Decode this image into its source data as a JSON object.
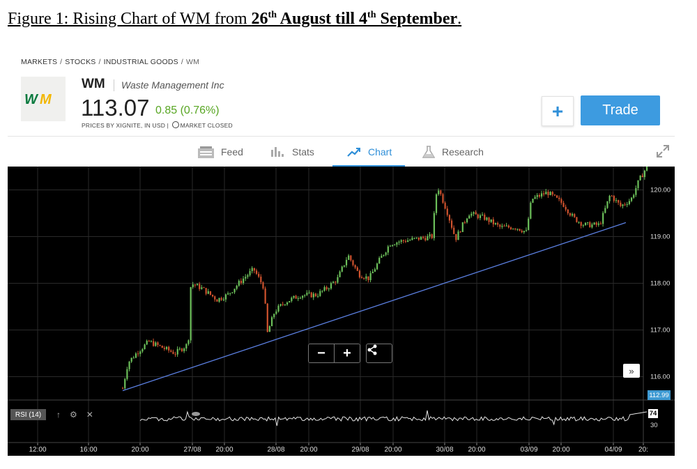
{
  "caption": {
    "prefix": "Figure 1: Rising Chart of WM from ",
    "day1": "26",
    "sup1": "th",
    "month1": " August till 4",
    "sup2": "th",
    "month2": " September",
    "suffix": "."
  },
  "breadcrumb": [
    "MARKETS",
    "STOCKS",
    "INDUSTRIAL GOODS",
    "WM"
  ],
  "header": {
    "logo_text": "WM",
    "ticker": "WM",
    "company": "Waste Management Inc",
    "price": "113.07",
    "change": "0.85 (0.76%)",
    "prices_by": "PRICES BY XIGNITE, IN USD",
    "market_status": "MARKET CLOSED",
    "add_label": "+",
    "trade_label": "Trade"
  },
  "tabs": [
    {
      "label": "Feed",
      "icon": "feed-icon"
    },
    {
      "label": "Stats",
      "icon": "stats-icon"
    },
    {
      "label": "Chart",
      "icon": "chart-icon",
      "active": true
    },
    {
      "label": "Research",
      "icon": "research-icon"
    }
  ],
  "chart_controls": {
    "zoom_out": "−",
    "zoom_in": "+",
    "forward": "»",
    "rsi_label": "RSI (14)",
    "current_price_badge": "112.99",
    "rsi_value_badge": "74"
  },
  "colors": {
    "accent": "#3d9be0",
    "positive": "#58a623",
    "candle_up": "#6cbf5a",
    "candle_down": "#d0532e",
    "trendline": "#5b7fe0"
  },
  "chart_data": {
    "type": "candlestick",
    "ylim": [
      115.5,
      120.5
    ],
    "y_ticks": [
      116.0,
      117.0,
      118.0,
      119.0,
      120.0
    ],
    "x_tick_labels": [
      "12:00",
      "16:00",
      "20:00",
      "27/08",
      "20:00",
      "28/08",
      "20:00",
      "29/08",
      "20:00",
      "30/08",
      "20:00",
      "03/09",
      "20:00",
      "04/09",
      "20:"
    ],
    "price_path": [
      [
        0.0,
        115.75
      ],
      [
        0.01,
        116.3
      ],
      [
        0.03,
        116.55
      ],
      [
        0.05,
        116.75
      ],
      [
        0.08,
        116.6
      ],
      [
        0.1,
        116.5
      ],
      [
        0.125,
        116.7
      ],
      [
        0.13,
        118.0
      ],
      [
        0.15,
        117.9
      ],
      [
        0.18,
        117.65
      ],
      [
        0.2,
        117.75
      ],
      [
        0.23,
        118.1
      ],
      [
        0.25,
        118.3
      ],
      [
        0.27,
        117.9
      ],
      [
        0.275,
        116.9
      ],
      [
        0.29,
        117.4
      ],
      [
        0.31,
        117.6
      ],
      [
        0.34,
        117.75
      ],
      [
        0.37,
        117.75
      ],
      [
        0.39,
        117.9
      ],
      [
        0.41,
        118.1
      ],
      [
        0.43,
        118.6
      ],
      [
        0.45,
        118.2
      ],
      [
        0.47,
        118.1
      ],
      [
        0.49,
        118.5
      ],
      [
        0.51,
        118.85
      ],
      [
        0.53,
        118.9
      ],
      [
        0.56,
        118.95
      ],
      [
        0.59,
        119.0
      ],
      [
        0.6,
        120.1
      ],
      [
        0.62,
        119.5
      ],
      [
        0.635,
        118.95
      ],
      [
        0.66,
        119.5
      ],
      [
        0.69,
        119.4
      ],
      [
        0.72,
        119.2
      ],
      [
        0.75,
        119.2
      ],
      [
        0.77,
        119.1
      ],
      [
        0.78,
        119.8
      ],
      [
        0.81,
        119.95
      ],
      [
        0.84,
        119.7
      ],
      [
        0.86,
        119.4
      ],
      [
        0.88,
        119.25
      ],
      [
        0.91,
        119.25
      ],
      [
        0.93,
        119.9
      ],
      [
        0.95,
        119.65
      ],
      [
        0.97,
        119.8
      ],
      [
        0.985,
        120.2
      ],
      [
        1.0,
        120.5
      ]
    ],
    "trendline": [
      [
        0.0,
        115.7
      ],
      [
        0.96,
        119.3
      ]
    ],
    "rsi": {
      "overbought": 74,
      "oversold": 30,
      "current": 74
    }
  }
}
